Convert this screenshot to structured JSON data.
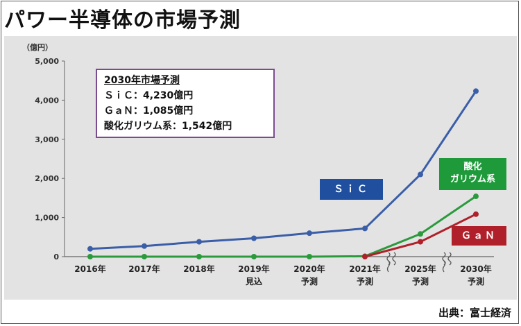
{
  "title": "パワー半導体の市場予測",
  "source": "出典：富士経済",
  "annotation": {
    "heading": "2030年市場予測",
    "lines": [
      "ＳｉＣ：4,230億円",
      "ＧａＮ：1,085億円",
      "酸化ガリウム系：1,542億円"
    ]
  },
  "series_labels": {
    "sic": "ＳｉＣ",
    "gallium_oxide_line1": "酸化",
    "gallium_oxide_line2": "ガリウム系",
    "gan": "ＧａＮ"
  },
  "chart_data": {
    "type": "line",
    "ylabel": "（億円）",
    "ylim": [
      0,
      5000
    ],
    "yticks": [
      "0",
      "1,000",
      "2,000",
      "3,000",
      "4,000",
      "5,000"
    ],
    "categories": [
      "2016年",
      "2017年",
      "2018年",
      "2019年\n見込",
      "2020年\n予測",
      "2021年\n予測",
      "2025年\n予測",
      "2030年\n予測"
    ],
    "axis_break_between": [
      [
        5,
        6
      ],
      [
        6,
        7
      ]
    ],
    "grid": false,
    "series": [
      {
        "name": "ＳｉＣ",
        "color": "#3a5ea8",
        "values": [
          200,
          270,
          380,
          470,
          600,
          720,
          2100,
          4230
        ]
      },
      {
        "name": "酸化ガリウム系",
        "color": "#2b9a3c",
        "values": [
          0,
          0,
          0,
          0,
          0,
          10,
          580,
          1542
        ]
      },
      {
        "name": "ＧａＮ",
        "color": "#b0202a",
        "values": [
          null,
          null,
          null,
          null,
          null,
          0,
          380,
          1085
        ]
      }
    ]
  }
}
